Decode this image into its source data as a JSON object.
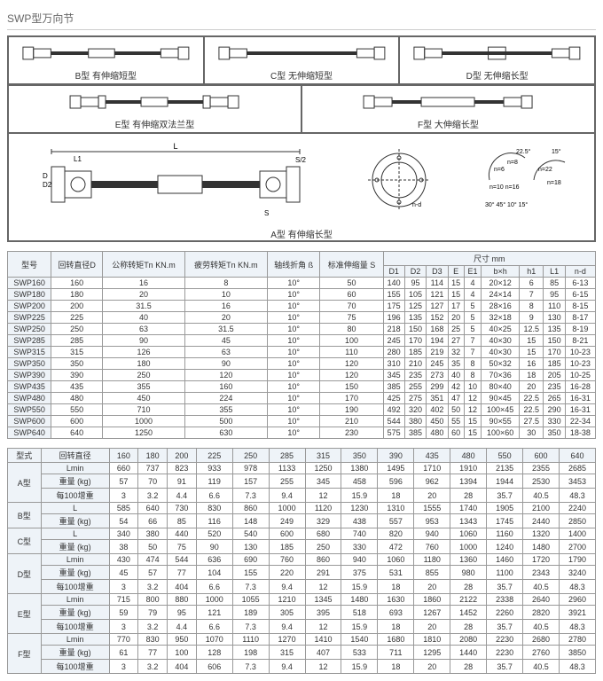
{
  "title": "SWP型万向节",
  "diagrams": {
    "b": "B型 有伸缩短型",
    "c": "C型 无伸缩短型",
    "d": "D型 无伸缩长型",
    "e": "E型 有伸缩双法兰型",
    "f": "F型 大伸缩长型",
    "a": "A型 有伸缩长型"
  },
  "t1": {
    "head": [
      "型号",
      "回转直径D",
      "公称转矩Tn KN.m",
      "疲劳转矩Tn KN.m",
      "轴线折角 ß",
      "标准伸缩量 S",
      "D1",
      "D2",
      "D3",
      "E",
      "E1",
      "b×h",
      "h1",
      "L1",
      "n-d"
    ],
    "dimLabel": "尺寸 mm",
    "rows": [
      [
        "SWP160",
        "160",
        "16",
        "8",
        "10°",
        "50",
        "140",
        "95",
        "114",
        "15",
        "4",
        "20×12",
        "6",
        "85",
        "6-13"
      ],
      [
        "SWP180",
        "180",
        "20",
        "10",
        "10°",
        "60",
        "155",
        "105",
        "121",
        "15",
        "4",
        "24×14",
        "7",
        "95",
        "6-15"
      ],
      [
        "SWP200",
        "200",
        "31.5",
        "16",
        "10°",
        "70",
        "175",
        "125",
        "127",
        "17",
        "5",
        "28×16",
        "8",
        "110",
        "8-15"
      ],
      [
        "SWP225",
        "225",
        "40",
        "20",
        "10°",
        "75",
        "196",
        "135",
        "152",
        "20",
        "5",
        "32×18",
        "9",
        "130",
        "8-17"
      ],
      [
        "SWP250",
        "250",
        "63",
        "31.5",
        "10°",
        "80",
        "218",
        "150",
        "168",
        "25",
        "5",
        "40×25",
        "12.5",
        "135",
        "8-19"
      ],
      [
        "SWP285",
        "285",
        "90",
        "45",
        "10°",
        "100",
        "245",
        "170",
        "194",
        "27",
        "7",
        "40×30",
        "15",
        "150",
        "8-21"
      ],
      [
        "SWP315",
        "315",
        "126",
        "63",
        "10°",
        "110",
        "280",
        "185",
        "219",
        "32",
        "7",
        "40×30",
        "15",
        "170",
        "10-23"
      ],
      [
        "SWP350",
        "350",
        "180",
        "90",
        "10°",
        "120",
        "310",
        "210",
        "245",
        "35",
        "8",
        "50×32",
        "16",
        "185",
        "10-23"
      ],
      [
        "SWP390",
        "390",
        "250",
        "120",
        "10°",
        "120",
        "345",
        "235",
        "273",
        "40",
        "8",
        "70×36",
        "18",
        "205",
        "10-25"
      ],
      [
        "SWP435",
        "435",
        "355",
        "160",
        "10°",
        "150",
        "385",
        "255",
        "299",
        "42",
        "10",
        "80×40",
        "20",
        "235",
        "16-28"
      ],
      [
        "SWP480",
        "480",
        "450",
        "224",
        "10°",
        "170",
        "425",
        "275",
        "351",
        "47",
        "12",
        "90×45",
        "22.5",
        "265",
        "16-31"
      ],
      [
        "SWP550",
        "550",
        "710",
        "355",
        "10°",
        "190",
        "492",
        "320",
        "402",
        "50",
        "12",
        "100×45",
        "22.5",
        "290",
        "16-31"
      ],
      [
        "SWP600",
        "600",
        "1000",
        "500",
        "10°",
        "210",
        "544",
        "380",
        "450",
        "55",
        "15",
        "90×55",
        "27.5",
        "330",
        "22-34"
      ],
      [
        "SWP640",
        "640",
        "1250",
        "630",
        "10°",
        "230",
        "575",
        "385",
        "480",
        "60",
        "15",
        "100×60",
        "30",
        "350",
        "18-38"
      ]
    ]
  },
  "t2": {
    "head": [
      "型式",
      "回转直径",
      "160",
      "180",
      "200",
      "225",
      "250",
      "285",
      "315",
      "350",
      "390",
      "435",
      "480",
      "550",
      "600",
      "640"
    ],
    "groups": [
      {
        "type": "A型",
        "rows": [
          [
            "Lmin",
            "660",
            "737",
            "823",
            "933",
            "978",
            "1133",
            "1250",
            "1380",
            "1495",
            "1710",
            "1910",
            "2135",
            "2355",
            "2685"
          ],
          [
            "重量 (kg)",
            "57",
            "70",
            "91",
            "119",
            "157",
            "255",
            "345",
            "458",
            "596",
            "962",
            "1394",
            "1944",
            "2530",
            "3453"
          ],
          [
            "每100增重",
            "3",
            "3.2",
            "4.4",
            "6.6",
            "7.3",
            "9.4",
            "12",
            "15.9",
            "18",
            "20",
            "28",
            "35.7",
            "40.5",
            "48.3"
          ]
        ]
      },
      {
        "type": "B型",
        "rows": [
          [
            "L",
            "585",
            "640",
            "730",
            "830",
            "860",
            "1000",
            "1120",
            "1230",
            "1310",
            "1555",
            "1740",
            "1905",
            "2100",
            "2240"
          ],
          [
            "重量 (kg)",
            "54",
            "66",
            "85",
            "116",
            "148",
            "249",
            "329",
            "438",
            "557",
            "953",
            "1343",
            "1745",
            "2440",
            "2850"
          ]
        ]
      },
      {
        "type": "C型",
        "rows": [
          [
            "L",
            "340",
            "380",
            "440",
            "520",
            "540",
            "600",
            "680",
            "740",
            "820",
            "940",
            "1060",
            "1160",
            "1320",
            "1400"
          ],
          [
            "重量 (kg)",
            "38",
            "50",
            "75",
            "90",
            "130",
            "185",
            "250",
            "330",
            "472",
            "760",
            "1000",
            "1240",
            "1480",
            "2700"
          ]
        ]
      },
      {
        "type": "D型",
        "rows": [
          [
            "Lmin",
            "430",
            "474",
            "544",
            "636",
            "690",
            "760",
            "860",
            "940",
            "1060",
            "1180",
            "1360",
            "1460",
            "1720",
            "1790"
          ],
          [
            "重量 (kg)",
            "45",
            "57",
            "77",
            "104",
            "155",
            "220",
            "291",
            "375",
            "531",
            "855",
            "980",
            "1100",
            "2343",
            "3240"
          ],
          [
            "每100增重",
            "3",
            "3.2",
            "404",
            "6.6",
            "7.3",
            "9.4",
            "12",
            "15.9",
            "18",
            "20",
            "28",
            "35.7",
            "40.5",
            "48.3"
          ]
        ]
      },
      {
        "type": "E型",
        "rows": [
          [
            "Lmin",
            "715",
            "800",
            "880",
            "1000",
            "1055",
            "1210",
            "1345",
            "1480",
            "1630",
            "1860",
            "2122",
            "2338",
            "2640",
            "2960"
          ],
          [
            "重量 (kg)",
            "59",
            "79",
            "95",
            "121",
            "189",
            "305",
            "395",
            "518",
            "693",
            "1267",
            "1452",
            "2260",
            "2820",
            "3921"
          ],
          [
            "每100增重",
            "3",
            "3.2",
            "4.4",
            "6.6",
            "7.3",
            "9.4",
            "12",
            "15.9",
            "18",
            "20",
            "28",
            "35.7",
            "40.5",
            "48.3"
          ]
        ]
      },
      {
        "type": "F型",
        "rows": [
          [
            "Lmin",
            "770",
            "830",
            "950",
            "1070",
            "1110",
            "1270",
            "1410",
            "1540",
            "1680",
            "1810",
            "2080",
            "2230",
            "2680",
            "2780"
          ],
          [
            "重量 (kg)",
            "61",
            "77",
            "100",
            "128",
            "198",
            "315",
            "407",
            "533",
            "711",
            "1295",
            "1440",
            "2230",
            "2760",
            "3850"
          ],
          [
            "每100增重",
            "3",
            "3.2",
            "404",
            "606",
            "7.3",
            "9.4",
            "12",
            "15.9",
            "18",
            "20",
            "28",
            "35.7",
            "40.5",
            "48.3"
          ]
        ]
      }
    ]
  }
}
